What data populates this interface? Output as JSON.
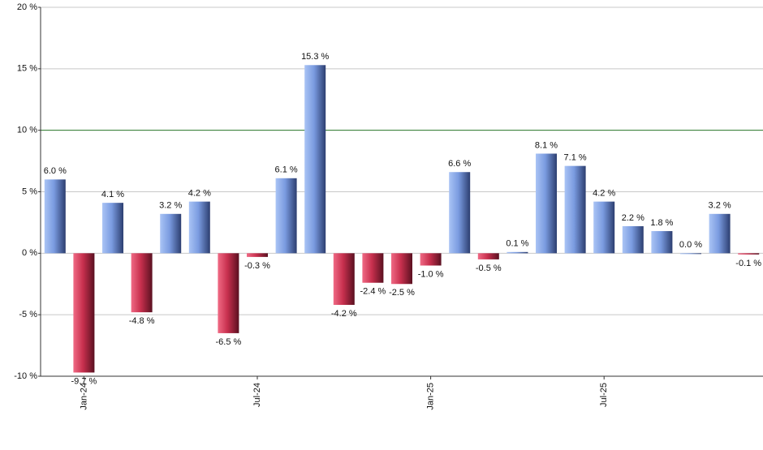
{
  "chart_data": {
    "type": "bar",
    "categories": [
      null,
      "Jan-24",
      null,
      null,
      null,
      null,
      null,
      "Jul-24",
      null,
      null,
      null,
      null,
      null,
      "Jan-25",
      null,
      null,
      null,
      null,
      null,
      "Jul-25",
      null,
      null,
      null,
      null,
      null
    ],
    "values": [
      6.0,
      -9.7,
      4.1,
      -4.8,
      3.2,
      4.2,
      -6.5,
      -0.3,
      6.1,
      15.3,
      -4.2,
      -2.4,
      -2.5,
      -1.0,
      6.6,
      -0.5,
      0.1,
      8.1,
      7.1,
      4.2,
      2.2,
      1.8,
      0.0,
      3.2,
      -0.1
    ],
    "value_labels": [
      "6.0 %",
      "-9.7 %",
      "4.1 %",
      "-4.8 %",
      "3.2 %",
      "4.2 %",
      "-6.5 %",
      "-0.3 %",
      "6.1 %",
      "15.3 %",
      "-4.2 %",
      "-2.4 %",
      "-2.5 %",
      "-1.0 %",
      "6.6 %",
      "-0.5 %",
      "0.1 %",
      "8.1 %",
      "7.1 %",
      "4.2 %",
      "2.2 %",
      "1.8 %",
      "0.0 %",
      "3.2 %",
      "-0.1 %"
    ],
    "positive_color": "#7a9be0",
    "negative_color": "#c8304e",
    "ylim": [
      -10,
      20
    ],
    "yticks": [
      {
        "value": -10,
        "label": "-10 %"
      },
      {
        "value": -5,
        "label": "-5 %"
      },
      {
        "value": 0,
        "label": "0 %"
      },
      {
        "value": 5,
        "label": "5 %"
      },
      {
        "value": 10,
        "label": "10 %"
      },
      {
        "value": 15,
        "label": "15 %"
      },
      {
        "value": 20,
        "label": "20 %"
      }
    ],
    "grid": true,
    "reference_line": {
      "value": 10,
      "color": "#2e7d2e"
    }
  }
}
